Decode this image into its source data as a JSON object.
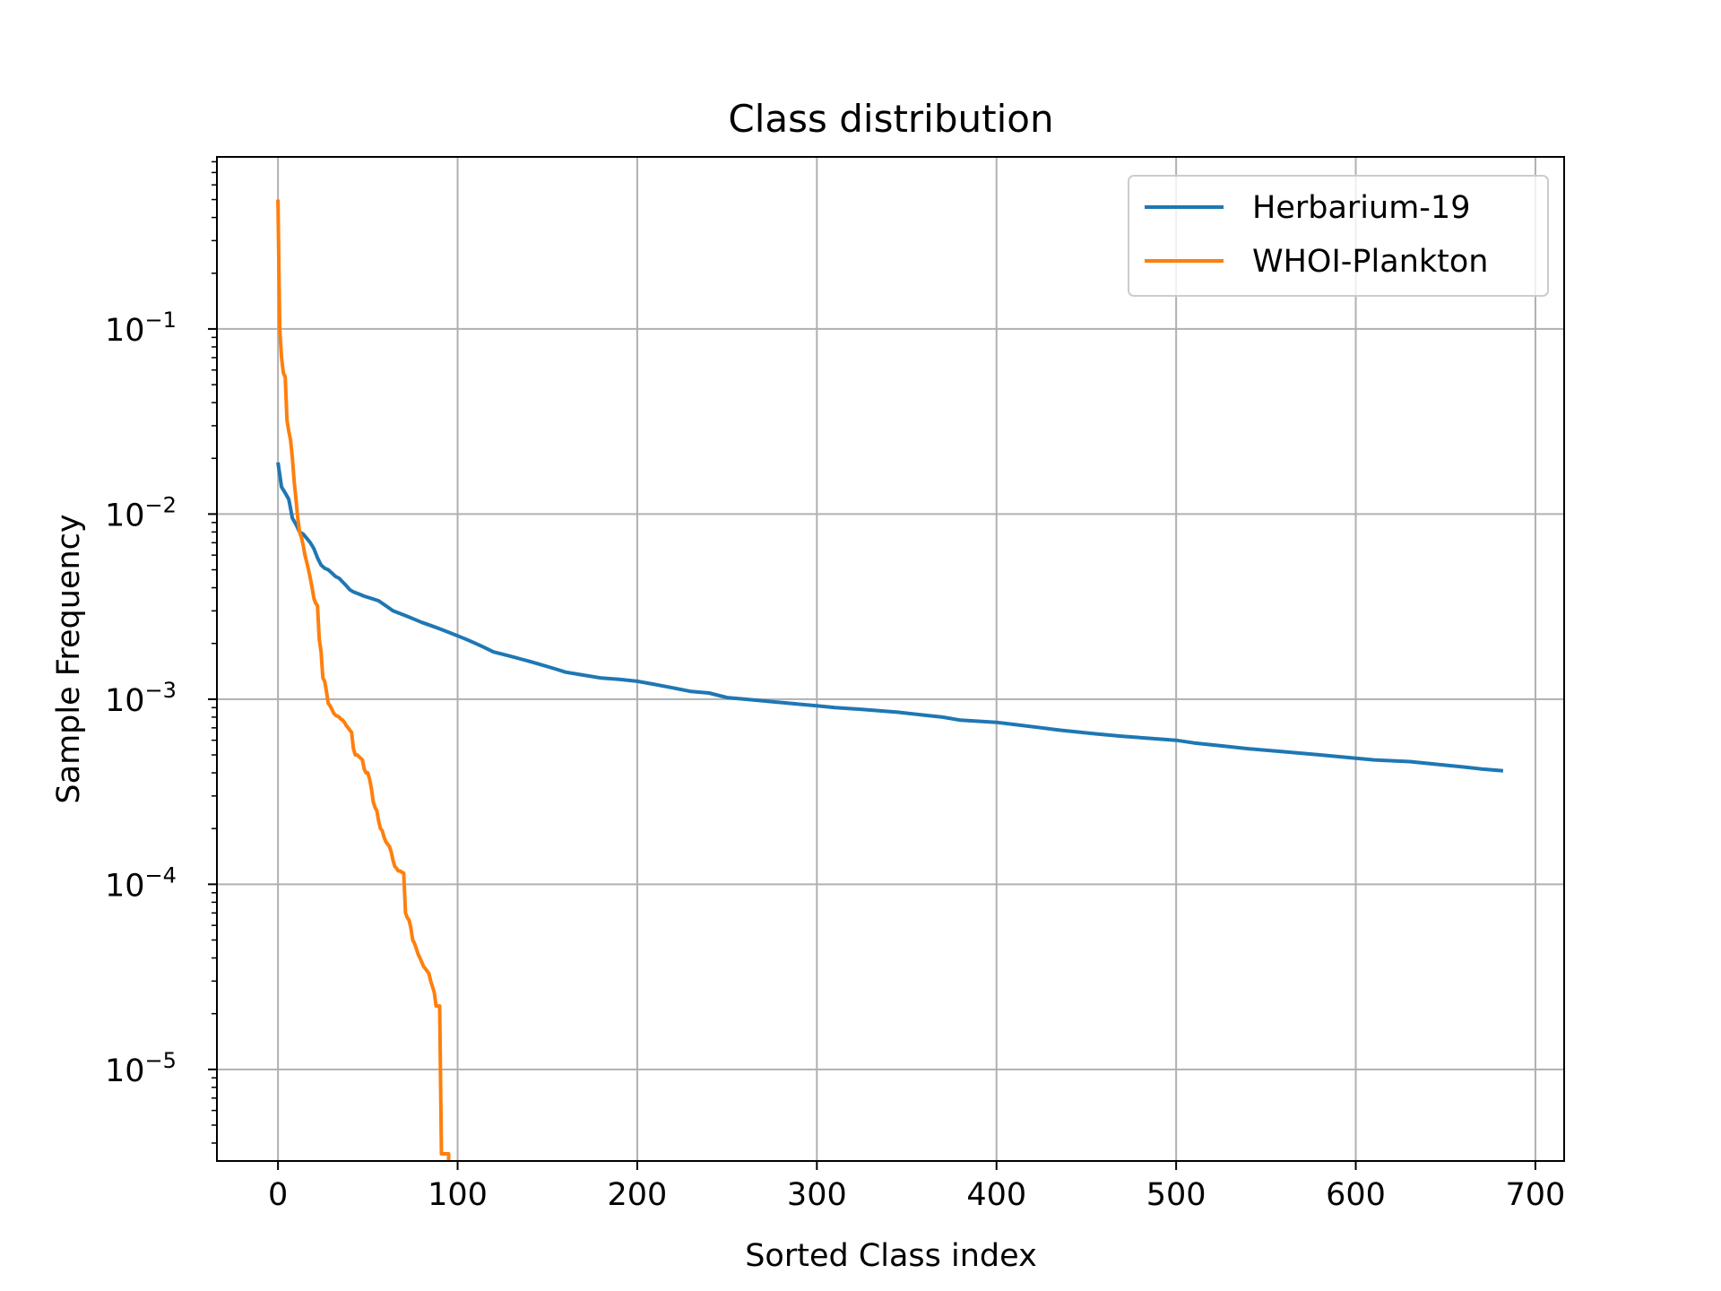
{
  "chart_data": {
    "type": "line",
    "title": "Class distribution",
    "xlabel": "Sorted Class index",
    "ylabel": "Sample Frequency",
    "xlim": [
      -34,
      716
    ],
    "ylim": [
      3.2e-06,
      0.85
    ],
    "y_scale": "log",
    "grid": true,
    "legend_position": "top-right",
    "x_ticks": [
      0,
      100,
      200,
      300,
      400,
      500,
      600,
      700
    ],
    "x_tick_labels": [
      "0",
      "100",
      "200",
      "300",
      "400",
      "500",
      "600",
      "700"
    ],
    "y_ticks": [
      0.1,
      0.01,
      0.001,
      0.0001,
      1e-05
    ],
    "y_tick_labels": [
      {
        "base": "10",
        "exp": "−1"
      },
      {
        "base": "10",
        "exp": "−2"
      },
      {
        "base": "10",
        "exp": "−3"
      },
      {
        "base": "10",
        "exp": "−4"
      },
      {
        "base": "10",
        "exp": "−5"
      }
    ],
    "series": [
      {
        "name": "Herbarium-19",
        "color": "#1f77b4",
        "x": [
          0,
          2,
          4,
          6,
          8,
          10,
          12,
          14,
          16,
          18,
          20,
          22,
          24,
          26,
          28,
          30,
          32,
          34,
          36,
          38,
          40,
          42,
          45,
          48,
          52,
          56,
          60,
          64,
          68,
          72,
          76,
          80,
          85,
          90,
          95,
          100,
          105,
          110,
          115,
          120,
          125,
          130,
          135,
          140,
          145,
          150,
          155,
          160,
          170,
          180,
          190,
          200,
          210,
          220,
          230,
          240,
          250,
          260,
          270,
          285,
          300,
          310,
          325,
          345,
          360,
          370,
          380,
          400,
          410,
          425,
          435,
          455,
          470,
          490,
          500,
          510,
          525,
          540,
          560,
          580,
          600,
          610,
          630,
          640,
          650,
          660,
          670,
          682
        ],
        "y": [
          0.019,
          0.014,
          0.013,
          0.012,
          0.0095,
          0.0088,
          0.008,
          0.0078,
          0.0074,
          0.007,
          0.0065,
          0.0058,
          0.0053,
          0.0051,
          0.005,
          0.0048,
          0.0046,
          0.0045,
          0.0043,
          0.0041,
          0.0039,
          0.0038,
          0.0037,
          0.0036,
          0.0035,
          0.0034,
          0.0032,
          0.003,
          0.0029,
          0.0028,
          0.0027,
          0.0026,
          0.0025,
          0.0024,
          0.0023,
          0.0022,
          0.0021,
          0.002,
          0.0019,
          0.0018,
          0.00175,
          0.0017,
          0.00165,
          0.0016,
          0.00155,
          0.0015,
          0.00145,
          0.0014,
          0.00135,
          0.0013,
          0.00128,
          0.00125,
          0.0012,
          0.00115,
          0.0011,
          0.00108,
          0.00102,
          0.001,
          0.00098,
          0.00095,
          0.00092,
          0.0009,
          0.00088,
          0.00085,
          0.00082,
          0.0008,
          0.00077,
          0.00075,
          0.00073,
          0.0007,
          0.00068,
          0.00065,
          0.00063,
          0.00061,
          0.0006,
          0.00058,
          0.00056,
          0.00054,
          0.00052,
          0.0005,
          0.00048,
          0.00047,
          0.00046,
          0.00045,
          0.00044,
          0.00043,
          0.00042,
          0.00041
        ]
      },
      {
        "name": "WHOI-Plankton",
        "color": "#ff7f0e",
        "x": [
          0,
          1,
          2,
          3,
          4,
          5,
          6,
          7,
          8,
          9,
          10,
          11,
          12,
          13,
          14,
          15,
          16,
          17,
          18,
          19,
          20,
          21,
          22,
          23,
          24,
          25,
          26,
          27,
          28,
          29,
          30,
          31,
          32,
          33,
          34,
          35,
          36,
          37,
          38,
          39,
          40,
          41,
          42,
          43,
          44,
          45,
          46,
          47,
          48,
          49,
          50,
          51,
          52,
          53,
          54,
          55,
          56,
          57,
          58,
          59,
          60,
          61,
          62,
          63,
          64,
          65,
          66,
          67,
          68,
          69,
          70,
          71,
          72,
          73,
          74,
          75,
          76,
          77,
          78,
          79,
          80,
          81,
          82,
          83,
          84,
          85,
          86,
          87,
          88,
          89,
          90,
          91,
          92,
          93,
          94,
          95
        ],
        "y": [
          0.5,
          0.1,
          0.07,
          0.058,
          0.055,
          0.032,
          0.028,
          0.025,
          0.02,
          0.015,
          0.012,
          0.0095,
          0.008,
          0.0075,
          0.0068,
          0.006,
          0.0055,
          0.005,
          0.0045,
          0.004,
          0.0035,
          0.0033,
          0.0032,
          0.0021,
          0.0018,
          0.0013,
          0.00125,
          0.0011,
          0.00095,
          0.00092,
          0.00088,
          0.00084,
          0.00082,
          0.00081,
          0.0008,
          0.00078,
          0.00077,
          0.00075,
          0.00072,
          0.0007,
          0.00068,
          0.00066,
          0.00054,
          0.0005,
          0.0005,
          0.00049,
          0.00048,
          0.00047,
          0.00042,
          0.0004,
          0.0004,
          0.00037,
          0.00033,
          0.00028,
          0.00026,
          0.00025,
          0.00022,
          0.0002,
          0.000195,
          0.00018,
          0.00017,
          0.000165,
          0.00016,
          0.00015,
          0.000135,
          0.000125,
          0.000122,
          0.000118,
          0.000118,
          0.000116,
          0.000115,
          7e-05,
          6.6e-05,
          6.4e-05,
          5.8e-05,
          5e-05,
          4.8e-05,
          4.5e-05,
          4.2e-05,
          4e-05,
          3.8e-05,
          3.6e-05,
          3.5e-05,
          3.4e-05,
          3.3e-05,
          3e-05,
          2.8e-05,
          2.6e-05,
          2.2e-05,
          2.2e-05,
          2.2e-05,
          3.5e-06,
          3.5e-06,
          3.5e-06,
          3.5e-06,
          3.5e-06
        ]
      }
    ]
  }
}
